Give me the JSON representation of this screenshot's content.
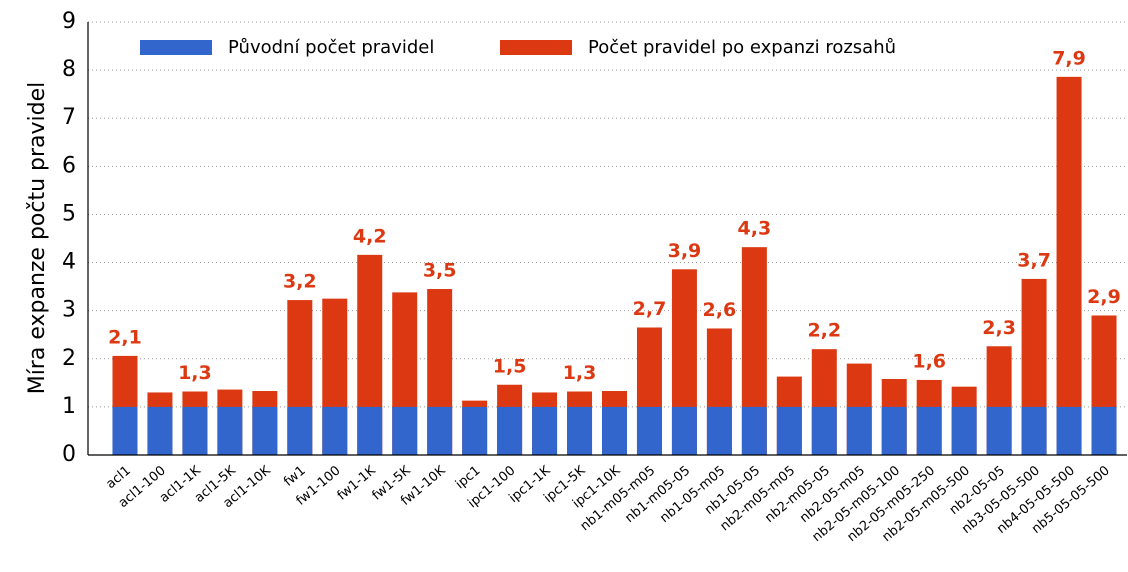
{
  "chart_data": {
    "type": "bar",
    "ylabel": "Míra expanze počtu pravidel",
    "categories": [
      "acl1",
      "acl1-100",
      "acl1-1K",
      "acl1-5K",
      "acl1-10K",
      "fw1",
      "fw1-100",
      "fw1-1K",
      "fw1-5K",
      "fw1-10K",
      "ipc1",
      "ipc1-100",
      "ipc1-1K",
      "ipc1-5K",
      "ipc1-10K",
      "nb1-m05-m05",
      "nb1-m05-05",
      "nb1-05-m05",
      "nb1-05-05",
      "nb2-m05-m05",
      "nb2-m05-05",
      "nb2-05-m05",
      "nb2-05-m05-100",
      "nb2-05-m05-250",
      "nb2-05-m05-500",
      "nb2-05-05",
      "nb3-05-05-500",
      "nb4-05-05-500",
      "nb5-05-05-500"
    ],
    "series": [
      {
        "name": "Původní počet pravidel",
        "color": "#3366cc",
        "values": [
          1,
          1,
          1,
          1,
          1,
          1,
          1,
          1,
          1,
          1,
          1,
          1,
          1,
          1,
          1,
          1,
          1,
          1,
          1,
          1,
          1,
          1,
          1,
          1,
          1,
          1,
          1,
          1,
          1
        ]
      },
      {
        "name": "Počet pravidel po expanzi rozsahů",
        "color": "#dc3912",
        "values": [
          2.06,
          1.3,
          1.32,
          1.36,
          1.33,
          3.22,
          3.25,
          4.16,
          3.38,
          3.45,
          1.13,
          1.46,
          1.3,
          1.32,
          1.33,
          2.65,
          3.86,
          2.63,
          4.32,
          1.63,
          2.2,
          1.9,
          1.58,
          1.56,
          1.42,
          2.26,
          3.66,
          7.86,
          2.9
        ],
        "value_labels": [
          "2,1",
          null,
          "1,3",
          null,
          null,
          "3,2",
          null,
          "4,2",
          null,
          "3,5",
          null,
          "1,5",
          null,
          "1,3",
          null,
          "2,7",
          "3,9",
          "2,6",
          "4,3",
          null,
          "2,2",
          null,
          null,
          "1,6",
          null,
          "2,3",
          "3,7",
          "7,9",
          "2,9"
        ]
      }
    ],
    "ylim": [
      0,
      9
    ],
    "yticks": [
      0,
      1,
      2,
      3,
      4,
      5,
      6,
      7,
      8,
      9
    ],
    "grid": true
  }
}
